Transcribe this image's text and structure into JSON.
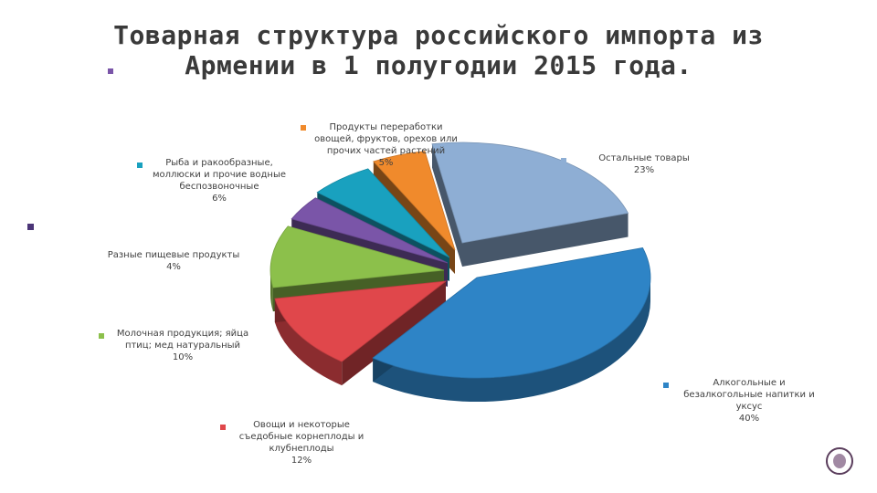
{
  "slide": {
    "title": "Товарная структура российского импорта из\nАрмении в 1 полугодии 2015 года."
  },
  "chart_data": {
    "type": "pie",
    "title": "Товарная структура российского импорта из Армении в 1 полугодии 2015 года.",
    "unit": "%",
    "slices": [
      {
        "name": "Остальные товары",
        "value": 23,
        "label": "23%",
        "color": "#8eaed4"
      },
      {
        "name": "Алкогольные и безалкогольные напитки и уксус",
        "value": 40,
        "label": "40%",
        "color": "#2e84c6"
      },
      {
        "name": "Овощи и некоторые съедобные корнеплоды и клубнеплоды",
        "value": 12,
        "label": "12%",
        "color": "#e0474b"
      },
      {
        "name": "Молочная продукция; яйца птиц; мед натуральный",
        "value": 10,
        "label": "10%",
        "color": "#8cc04b"
      },
      {
        "name": "Разные пищевые продукты",
        "value": 4,
        "label": "4%",
        "color": "#7a55a8"
      },
      {
        "name": "Рыба и ракообразные, моллюски и прочие водные беспозвоночные",
        "value": 6,
        "label": "6%",
        "color": "#19a1bf"
      },
      {
        "name": "Продукты переработки овощей, фруктов, орехов или прочих частей растений",
        "value": 5,
        "label": "5%",
        "color": "#f08a2c"
      }
    ],
    "display_labels": [
      "Остальные товары",
      "Алкогольные и\nбезалкогольные напитки и\nуксус",
      "Овощи и некоторые\nсъедобные корнеплоды и\nклубнеплоды",
      "Молочная продукция; яйца\nптиц; мед натуральный",
      "Разные пищевые продукты",
      "Рыба и ракообразные,\nмоллюски и прочие водные\nбеспозвоночные",
      "Продукты переработки\nовощей, фруктов, орехов или\nпрочих частей растений"
    ],
    "style": "3d-exploded"
  }
}
